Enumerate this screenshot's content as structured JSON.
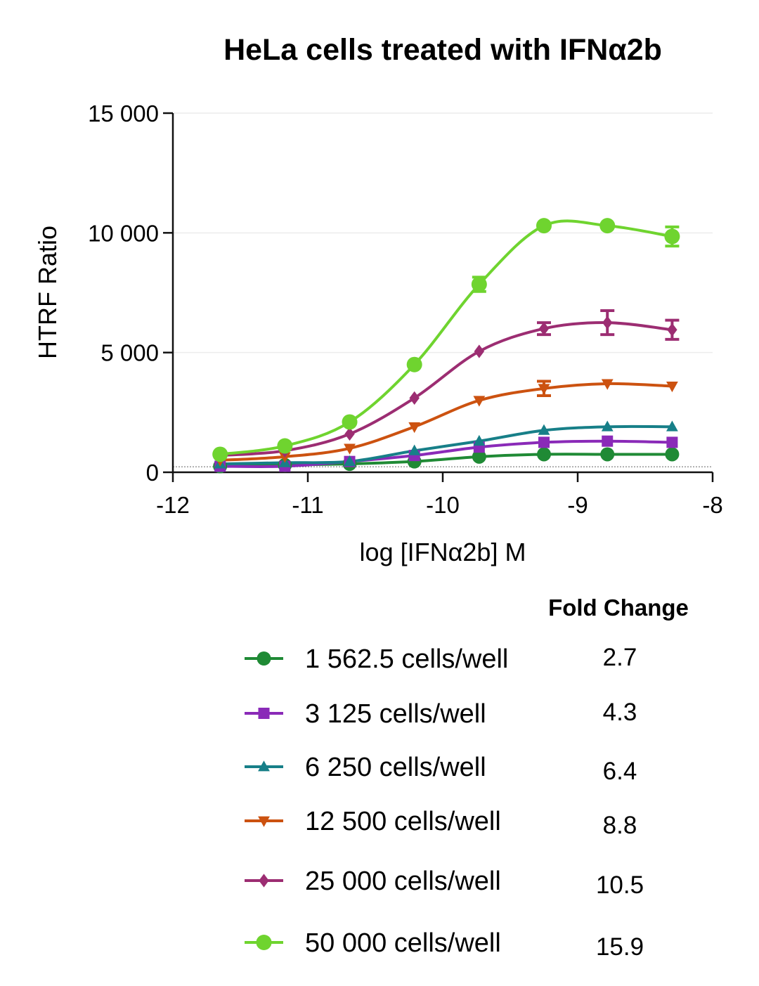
{
  "chart_data": {
    "type": "line",
    "title": "HeLa cells treated with IFNα2b",
    "xlabel": "log [IFNα2b] M",
    "ylabel": "HTRF Ratio",
    "xlim": [
      -12,
      -8
    ],
    "ylim": [
      0,
      15000
    ],
    "x_ticks": [
      -12,
      -11,
      -10,
      -9,
      -8
    ],
    "x_tick_labels": [
      "-12",
      "-11",
      "-10",
      "-9",
      "-8"
    ],
    "y_ticks": [
      0,
      5000,
      10000,
      15000
    ],
    "y_tick_labels": [
      "0",
      "5 000",
      "10 000",
      "15 000"
    ],
    "grid": "horizontal",
    "baseline_dotted": 230,
    "legend_position": "bottom",
    "fold_change_header": "Fold Change",
    "x": [
      -11.65,
      -11.17,
      -10.69,
      -10.21,
      -9.73,
      -9.25,
      -8.78,
      -8.3
    ],
    "series": [
      {
        "name": "1 562.5 cells/well",
        "fold_change": "2.7",
        "color": "#1f8a35",
        "marker": "circle",
        "values": [
          250,
          300,
          350,
          450,
          650,
          750,
          750,
          750
        ],
        "errors": [
          0,
          0,
          0,
          0,
          0,
          0,
          0,
          0
        ]
      },
      {
        "name": "3 125 cells/well",
        "fold_change": "4.3",
        "color": "#8a2ab8",
        "marker": "square",
        "values": [
          250,
          250,
          450,
          700,
          1050,
          1250,
          1300,
          1250
        ],
        "errors": [
          0,
          0,
          0,
          0,
          0,
          0,
          0,
          0
        ]
      },
      {
        "name": "6 250 cells/well",
        "fold_change": "6.4",
        "color": "#177f88",
        "marker": "triangle-up",
        "values": [
          350,
          400,
          450,
          900,
          1300,
          1750,
          1900,
          1900
        ],
        "errors": [
          0,
          0,
          0,
          0,
          0,
          0,
          0,
          0
        ]
      },
      {
        "name": "12 500 cells/well",
        "fold_change": "8.8",
        "color": "#cc5210",
        "marker": "triangle-down",
        "values": [
          500,
          650,
          1000,
          1900,
          3000,
          3500,
          3700,
          3600
        ],
        "errors": [
          0,
          0,
          0,
          0,
          0,
          300,
          0,
          0
        ]
      },
      {
        "name": "25 000 cells/well",
        "fold_change": "10.5",
        "color": "#9c2d72",
        "marker": "diamond",
        "values": [
          700,
          900,
          1600,
          3100,
          5050,
          6000,
          6250,
          5950
        ],
        "errors": [
          0,
          0,
          0,
          0,
          0,
          250,
          500,
          400
        ]
      },
      {
        "name": "50 000 cells/well",
        "fold_change": "15.9",
        "color": "#6fd42f",
        "marker": "circle",
        "values": [
          750,
          1100,
          2100,
          4500,
          7850,
          10300,
          10300,
          9850
        ],
        "errors": [
          0,
          0,
          0,
          0,
          300,
          0,
          0,
          400
        ]
      }
    ]
  }
}
